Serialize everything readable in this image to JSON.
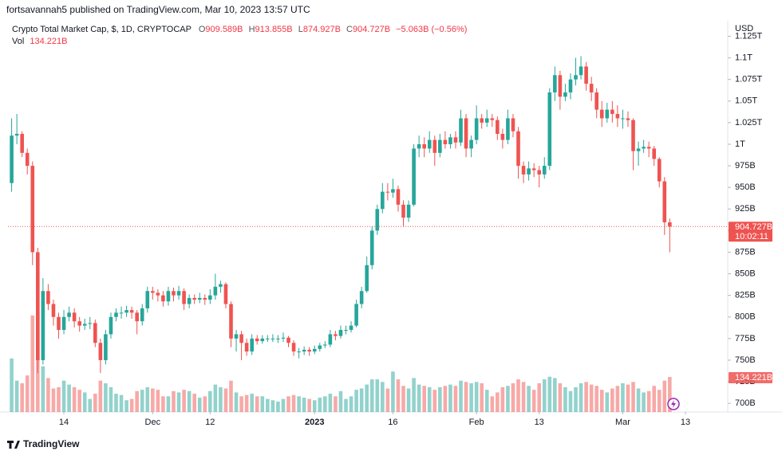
{
  "chart_data": {
    "type": "candlestick",
    "publisher": "fortsavannah5 published on TradingView.com, Mar 10, 2023 13:57 UTC",
    "title": "Crypto Total Market Cap, $, 1D, CRYPTOCAP",
    "legend": {
      "o_label": "O",
      "o": "909.589B",
      "h_label": "H",
      "h": "913.855B",
      "l_label": "L",
      "l": "874.927B",
      "c_label": "C",
      "c": "904.727B",
      "change": "−5.063B (−0.56%)",
      "vol_label": "Vol",
      "vol": "134.221B"
    },
    "currency": "USD",
    "last_price_label": "904.727B",
    "countdown": "10:02:11",
    "volume_tag": "134.221B",
    "footer": "TradingView",
    "up_color": "#26a69a",
    "down_color": "#ef5350",
    "grid": false,
    "xlim": [
      -0.7,
      137.1
    ],
    "xticks": [
      {
        "value": 10,
        "label": "14"
      },
      {
        "value": 27,
        "label": "Dec"
      },
      {
        "value": 38,
        "label": "12"
      },
      {
        "value": 58,
        "label": "2023"
      },
      {
        "value": 73,
        "label": "16"
      },
      {
        "value": 89,
        "label": "Feb"
      },
      {
        "value": 101,
        "label": "13"
      },
      {
        "value": 117,
        "label": "Mar"
      },
      {
        "value": 129,
        "label": "13"
      }
    ],
    "ylim": [
      690,
      1143
    ],
    "yticks": [
      {
        "value": 700,
        "label": "700B"
      },
      {
        "value": 725,
        "label": "725B"
      },
      {
        "value": 750,
        "label": "750B"
      },
      {
        "value": 775,
        "label": "775B"
      },
      {
        "value": 800,
        "label": "800B"
      },
      {
        "value": 825,
        "label": "825B"
      },
      {
        "value": 850,
        "label": "850B"
      },
      {
        "value": 875,
        "label": "875B"
      },
      {
        "value": 900,
        "label": "900B"
      },
      {
        "value": 925,
        "label": "925B"
      },
      {
        "value": 950,
        "label": "950B"
      },
      {
        "value": 975,
        "label": "975B"
      },
      {
        "value": 1000,
        "label": "1T"
      },
      {
        "value": 1025,
        "label": "1.025T"
      },
      {
        "value": 1050,
        "label": "1.05T"
      },
      {
        "value": 1075,
        "label": "1.075T"
      },
      {
        "value": 1100,
        "label": "1.1T"
      },
      {
        "value": 1125,
        "label": "1.125T"
      }
    ],
    "volume_lim": [
      0,
      400
    ],
    "open": [
      955,
      1010,
      1012,
      990,
      975,
      875,
      750,
      830,
      815,
      800,
      785,
      800,
      805,
      795,
      790,
      792,
      793,
      770,
      750,
      780,
      800,
      805,
      805,
      808,
      805,
      795,
      810,
      830,
      828,
      825,
      818,
      830,
      825,
      830,
      815,
      822,
      820,
      822,
      820,
      825,
      835,
      838,
      815,
      775,
      780,
      770,
      760,
      775,
      772,
      775,
      775,
      775,
      775,
      776,
      770,
      760,
      760,
      762,
      760,
      763,
      767,
      768,
      780,
      778,
      785,
      785,
      790,
      815,
      830,
      860,
      900,
      925,
      945,
      944,
      948,
      930,
      915,
      930,
      995,
      1000,
      995,
      1005,
      990,
      1005,
      1000,
      1008,
      1002,
      1030,
      995,
      1005,
      1030,
      1025,
      1030,
      1028,
      1012,
      1005,
      1030,
      1015,
      975,
      965,
      972,
      970,
      965,
      975,
      1060,
      1080,
      1055,
      1060,
      1075,
      1080,
      1090,
      1070,
      1060,
      1040,
      1030,
      1040,
      1035,
      1030,
      1030,
      1028,
      992,
      995,
      997,
      995,
      983,
      957,
      909.589
    ],
    "high": [
      1030,
      1035,
      1015,
      995,
      980,
      880,
      845,
      838,
      820,
      805,
      808,
      812,
      810,
      800,
      798,
      800,
      797,
      775,
      785,
      805,
      810,
      812,
      813,
      812,
      808,
      815,
      835,
      835,
      832,
      830,
      835,
      834,
      836,
      833,
      826,
      826,
      828,
      826,
      832,
      850,
      842,
      840,
      818,
      785,
      784,
      775,
      780,
      779,
      779,
      779,
      780,
      779,
      782,
      778,
      773,
      764,
      766,
      765,
      767,
      770,
      772,
      785,
      784,
      790,
      790,
      795,
      820,
      835,
      870,
      905,
      930,
      955,
      955,
      960,
      952,
      935,
      935,
      1000,
      1010,
      1008,
      1015,
      1010,
      1012,
      1015,
      1012,
      1015,
      1040,
      1035,
      1010,
      1045,
      1035,
      1040,
      1035,
      1032,
      1018,
      1040,
      1035,
      1020,
      980,
      980,
      978,
      975,
      985,
      1065,
      1090,
      1085,
      1070,
      1082,
      1100,
      1102,
      1095,
      1078,
      1065,
      1050,
      1048,
      1050,
      1045,
      1040,
      1038,
      1030,
      1003,
      1005,
      1003,
      998,
      985,
      962,
      913.855
    ],
    "low": [
      945,
      1000,
      985,
      965,
      860,
      735,
      745,
      808,
      790,
      775,
      780,
      795,
      788,
      783,
      785,
      786,
      765,
      735,
      745,
      775,
      795,
      798,
      800,
      798,
      780,
      790,
      805,
      820,
      818,
      812,
      813,
      818,
      820,
      808,
      810,
      815,
      816,
      814,
      815,
      820,
      828,
      810,
      765,
      760,
      750,
      755,
      756,
      768,
      769,
      771,
      771,
      770,
      771,
      765,
      755,
      752,
      756,
      755,
      757,
      760,
      764,
      765,
      773,
      775,
      780,
      782,
      788,
      810,
      828,
      855,
      895,
      920,
      935,
      938,
      922,
      905,
      910,
      928,
      985,
      985,
      990,
      975,
      985,
      995,
      995,
      995,
      998,
      985,
      985,
      1000,
      1018,
      1020,
      1020,
      1005,
      995,
      1000,
      1008,
      960,
      955,
      958,
      962,
      950,
      960,
      970,
      1050,
      1040,
      1050,
      1052,
      1068,
      1075,
      1062,
      1050,
      1030,
      1020,
      1025,
      1025,
      1020,
      1018,
      1020,
      970,
      975,
      990,
      985,
      975,
      950,
      895,
      874.927
    ],
    "close": [
      1010,
      1012,
      990,
      975,
      875,
      750,
      830,
      815,
      800,
      785,
      800,
      805,
      795,
      790,
      792,
      793,
      770,
      750,
      780,
      800,
      805,
      805,
      808,
      805,
      795,
      810,
      830,
      828,
      825,
      818,
      830,
      825,
      830,
      815,
      822,
      820,
      822,
      820,
      825,
      835,
      838,
      815,
      775,
      780,
      770,
      760,
      775,
      772,
      775,
      775,
      775,
      775,
      776,
      770,
      760,
      760,
      762,
      760,
      763,
      767,
      768,
      780,
      778,
      785,
      785,
      790,
      815,
      830,
      860,
      900,
      925,
      945,
      944,
      948,
      930,
      915,
      930,
      995,
      1000,
      995,
      1005,
      990,
      1005,
      1000,
      1008,
      1002,
      1030,
      995,
      1005,
      1030,
      1025,
      1030,
      1028,
      1012,
      1005,
      1030,
      1015,
      975,
      965,
      972,
      970,
      965,
      975,
      1060,
      1080,
      1055,
      1060,
      1075,
      1080,
      1090,
      1070,
      1060,
      1040,
      1030,
      1040,
      1035,
      1030,
      1030,
      1028,
      992,
      995,
      997,
      995,
      983,
      957,
      909.589,
      904.727
    ],
    "volume": [
      205,
      120,
      110,
      140,
      370,
      390,
      175,
      130,
      90,
      95,
      120,
      105,
      95,
      85,
      75,
      50,
      70,
      120,
      110,
      95,
      70,
      65,
      45,
      50,
      80,
      85,
      95,
      90,
      85,
      60,
      60,
      80,
      75,
      85,
      80,
      70,
      55,
      60,
      80,
      105,
      95,
      90,
      120,
      75,
      60,
      65,
      70,
      60,
      60,
      50,
      45,
      40,
      50,
      60,
      65,
      60,
      55,
      50,
      45,
      55,
      60,
      70,
      60,
      80,
      50,
      60,
      85,
      90,
      105,
      125,
      125,
      115,
      90,
      155,
      125,
      100,
      90,
      130,
      105,
      100,
      95,
      85,
      95,
      100,
      105,
      100,
      120,
      115,
      110,
      115,
      110,
      85,
      60,
      75,
      95,
      100,
      110,
      125,
      115,
      100,
      85,
      110,
      125,
      135,
      130,
      110,
      95,
      80,
      95,
      110,
      115,
      105,
      100,
      85,
      75,
      90,
      100,
      110,
      105,
      115,
      90,
      75,
      80,
      100,
      85,
      120,
      134.221
    ]
  }
}
